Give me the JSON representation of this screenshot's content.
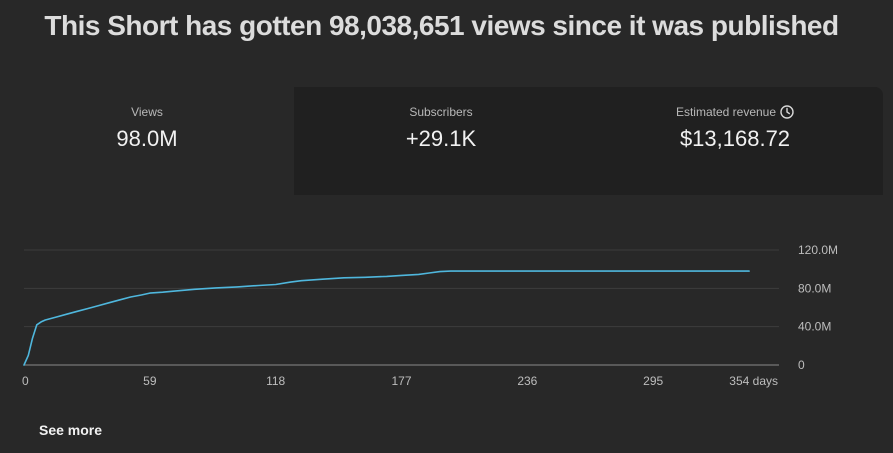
{
  "headline": "This Short has gotten 98,038,651 views since it was published",
  "stats": [
    {
      "label": "Views",
      "value": "98.0M"
    },
    {
      "label": "Subscribers",
      "value": "+29.1K"
    },
    {
      "label": "Estimated revenue",
      "value": "$13,168.72",
      "icon": "clock-icon"
    }
  ],
  "see_more": "See more",
  "colors": {
    "line": "#4fb7dd",
    "background": "#282828",
    "panel": "#202020"
  },
  "chart_data": {
    "type": "line",
    "title": "",
    "xlabel": "",
    "ylabel": "",
    "xlim": [
      0,
      354
    ],
    "ylim": [
      0,
      120000000
    ],
    "x_ticks": [
      0,
      59,
      118,
      177,
      236,
      295,
      354
    ],
    "x_tick_labels": [
      "0",
      "59",
      "118",
      "177",
      "236",
      "295",
      "354 days"
    ],
    "y_ticks": [
      0,
      40000000,
      80000000,
      120000000
    ],
    "y_tick_labels": [
      "0",
      "40.0M",
      "80.0M",
      "120.0M"
    ],
    "grid": true,
    "series": [
      {
        "x": [
          0,
          2,
          4,
          6,
          8,
          10,
          15,
          20,
          25,
          30,
          35,
          40,
          45,
          50,
          55,
          59,
          65,
          70,
          80,
          90,
          100,
          110,
          118,
          125,
          130,
          140,
          150,
          160,
          170,
          177,
          185,
          190,
          195,
          200,
          220,
          236,
          260,
          295,
          320,
          340
        ],
        "values": [
          0,
          10000000,
          28000000,
          42000000,
          45000000,
          47000000,
          50000000,
          53000000,
          56000000,
          59000000,
          62000000,
          65000000,
          68000000,
          71000000,
          73000000,
          75000000,
          76000000,
          77000000,
          79000000,
          80500000,
          81500000,
          83000000,
          84000000,
          86500000,
          88000000,
          89500000,
          91000000,
          91500000,
          92500000,
          93500000,
          94500000,
          96000000,
          97500000,
          98000000,
          98000000,
          98000000,
          98000000,
          98000000,
          98000000,
          98000000
        ]
      }
    ]
  }
}
